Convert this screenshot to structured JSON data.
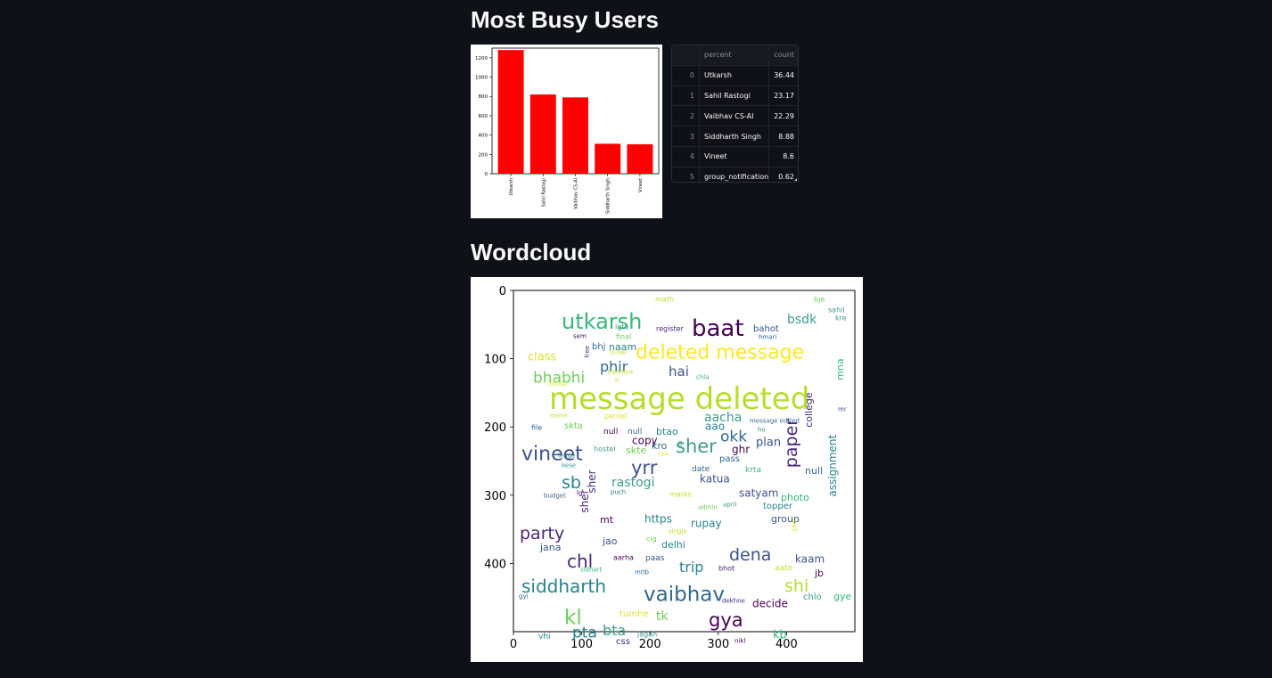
{
  "sections": {
    "busy_users_title": "Most Busy Users",
    "wordcloud_title": "Wordcloud"
  },
  "chart_data": [
    {
      "type": "bar",
      "categories": [
        "Utkarsh",
        "Sahil Rastogi",
        "Vaibhav CS-AI",
        "Siddharth Singh",
        "Vineet"
      ],
      "values": [
        1280,
        820,
        790,
        310,
        305
      ],
      "ylim": [
        0,
        1300
      ],
      "yticks": [
        0,
        200,
        400,
        600,
        800,
        1000,
        1200
      ],
      "bar_color": "#ff0000",
      "grid": false
    }
  ],
  "table": {
    "columns": [
      "",
      "percent",
      "count"
    ],
    "rows": [
      {
        "idx": "0",
        "name": "Utkarsh",
        "val": "36.44"
      },
      {
        "idx": "1",
        "name": "Sahil Rastogi",
        "val": "23.17"
      },
      {
        "idx": "2",
        "name": "Vaibhav CS-AI",
        "val": "22.29"
      },
      {
        "idx": "3",
        "name": "Siddharth Singh",
        "val": "8.88"
      },
      {
        "idx": "4",
        "name": "Vineet",
        "val": "8.6"
      },
      {
        "idx": "5",
        "name": "group_notification",
        "val": "0.62"
      }
    ]
  },
  "wordcloud": {
    "xticks": [
      "0",
      "100",
      "200",
      "300",
      "400"
    ],
    "yticks": [
      "0",
      "100",
      "200",
      "300",
      "400"
    ],
    "words": [
      {
        "t": "message deleted",
        "x": 38,
        "y": 106,
        "s": 34,
        "c": "#b5de2b"
      },
      {
        "t": "deleted message",
        "x": 135,
        "y": 59,
        "s": 22,
        "c": "#fde725"
      },
      {
        "t": "utkarsh",
        "x": 52,
        "y": 24,
        "s": 24,
        "c": "#35b779"
      },
      {
        "t": "baat",
        "x": 198,
        "y": 30,
        "s": 26,
        "c": "#440154"
      },
      {
        "t": "bsdk",
        "x": 305,
        "y": 26,
        "s": 14,
        "c": "#3e9a8c"
      },
      {
        "t": "math",
        "x": 157,
        "y": 6,
        "s": 8,
        "c": "#bddf26"
      },
      {
        "t": "bje",
        "x": 335,
        "y": 6,
        "s": 8,
        "c": "#6ece58"
      },
      {
        "t": "sahil",
        "x": 351,
        "y": 18,
        "s": 8,
        "c": "#3e9a8c"
      },
      {
        "t": "kre",
        "x": 359,
        "y": 27,
        "s": 8,
        "c": "#3e9a8c"
      },
      {
        "t": "bahot",
        "x": 267,
        "y": 38,
        "s": 10,
        "c": "#3b528b"
      },
      {
        "t": "hmari",
        "x": 273,
        "y": 49,
        "s": 7,
        "c": "#31688e"
      },
      {
        "t": "register",
        "x": 158,
        "y": 39,
        "s": 8,
        "c": "#482878"
      },
      {
        "t": "lgta",
        "x": 112,
        "y": 37,
        "s": 8,
        "c": "#3e9a8c"
      },
      {
        "t": "final",
        "x": 113,
        "y": 48,
        "s": 8,
        "c": "#6ece58"
      },
      {
        "t": "sem",
        "x": 65,
        "y": 48,
        "s": 7,
        "c": "#440154"
      },
      {
        "t": "bhj",
        "x": 86,
        "y": 58,
        "s": 10,
        "c": "#31688e"
      },
      {
        "t": "naam",
        "x": 105,
        "y": 58,
        "s": 11,
        "c": "#26828e"
      },
      {
        "t": "class",
        "x": 14,
        "y": 68,
        "s": 13,
        "c": "#dbe32d"
      },
      {
        "t": "ticket",
        "x": 106,
        "y": 66,
        "s": 7,
        "c": "#bddf26"
      },
      {
        "t": "free",
        "x": 83,
        "y": 70,
        "s": 7,
        "c": "#482878",
        "r": -90
      },
      {
        "t": "phir",
        "x": 95,
        "y": 78,
        "s": 16,
        "c": "#31688e"
      },
      {
        "t": "badhiya",
        "x": 104,
        "y": 88,
        "s": 7,
        "c": "#bddf26"
      },
      {
        "t": "hai",
        "x": 172,
        "y": 84,
        "s": 15,
        "c": "#3b528b"
      },
      {
        "t": "chla",
        "x": 203,
        "y": 94,
        "s": 7,
        "c": "#35b779"
      },
      {
        "t": "bhabhi",
        "x": 20,
        "y": 90,
        "s": 17,
        "c": "#6ece58"
      },
      {
        "t": "jayagi",
        "x": 37,
        "y": 101,
        "s": 7,
        "c": "#dbe32d"
      },
      {
        "t": "h",
        "x": 112,
        "y": 98,
        "s": 7,
        "c": "#dbe32d"
      },
      {
        "t": "mna",
        "x": 368,
        "y": 92,
        "s": 11,
        "c": "#35b779",
        "r": -90
      },
      {
        "t": "mr",
        "x": 362,
        "y": 130,
        "s": 7,
        "c": "#3b528b"
      },
      {
        "t": "aacha",
        "x": 212,
        "y": 136,
        "s": 14,
        "c": "#3e9a8c"
      },
      {
        "t": "aao",
        "x": 213,
        "y": 147,
        "s": 12,
        "c": "#26828e"
      },
      {
        "t": "mene",
        "x": 39,
        "y": 137,
        "s": 7,
        "c": "#bddf26"
      },
      {
        "t": "period",
        "x": 100,
        "y": 137,
        "s": 8,
        "c": "#dbe32d"
      },
      {
        "t": "skta",
        "x": 55,
        "y": 147,
        "s": 10,
        "c": "#6ece58"
      },
      {
        "t": "file",
        "x": 18,
        "y": 150,
        "s": 8,
        "c": "#31688e"
      },
      {
        "t": "message edited",
        "x": 263,
        "y": 143,
        "s": 7,
        "c": "#31688e"
      },
      {
        "t": "ho",
        "x": 272,
        "y": 153,
        "s": 7,
        "c": "#3e9a8c"
      },
      {
        "t": "okk",
        "x": 230,
        "y": 156,
        "s": 17,
        "c": "#31688e"
      },
      {
        "t": "college",
        "x": 333,
        "y": 145,
        "s": 11,
        "c": "#482878",
        "r": -90
      },
      {
        "t": "null",
        "x": 99,
        "y": 154,
        "s": 9,
        "c": "#440154"
      },
      {
        "t": "null",
        "x": 126,
        "y": 154,
        "s": 9,
        "c": "#31688e"
      },
      {
        "t": "btao",
        "x": 158,
        "y": 153,
        "s": 11,
        "c": "#26828e"
      },
      {
        "t": "sher",
        "x": 180,
        "y": 165,
        "s": 21,
        "c": "#3e9a8c"
      },
      {
        "t": "plan",
        "x": 270,
        "y": 164,
        "s": 13,
        "c": "#3b528b"
      },
      {
        "t": "copy",
        "x": 131,
        "y": 163,
        "s": 12,
        "c": "#440154"
      },
      {
        "t": "vineet",
        "x": 7,
        "y": 173,
        "s": 22,
        "c": "#3b528b"
      },
      {
        "t": "kro",
        "x": 153,
        "y": 169,
        "s": 11,
        "c": "#31688e"
      },
      {
        "t": "tb",
        "x": 187,
        "y": 170,
        "s": 7,
        "c": "#3e9a8c",
        "r": -90
      },
      {
        "t": "hostel",
        "x": 88,
        "y": 174,
        "s": 8,
        "c": "#3e9a8c"
      },
      {
        "t": "skte",
        "x": 124,
        "y": 174,
        "s": 11,
        "c": "#6ece58"
      },
      {
        "t": "ghr",
        "x": 243,
        "y": 173,
        "s": 12,
        "c": "#440154"
      },
      {
        "t": "lenge",
        "x": 48,
        "y": 182,
        "s": 7,
        "c": "#26828e"
      },
      {
        "t": "cee",
        "x": 160,
        "y": 180,
        "s": 7,
        "c": "#dbe32d"
      },
      {
        "t": "yrr",
        "x": 130,
        "y": 189,
        "s": 21,
        "c": "#3b528b"
      },
      {
        "t": "pass",
        "x": 229,
        "y": 184,
        "s": 10,
        "c": "#31688e"
      },
      {
        "t": "paper",
        "x": 316,
        "y": 184,
        "s": 19,
        "c": "#482878",
        "r": -90
      },
      {
        "t": "kese",
        "x": 52,
        "y": 193,
        "s": 7,
        "c": "#3e9a8c"
      },
      {
        "t": "null",
        "x": 325,
        "y": 197,
        "s": 11,
        "c": "#31688e"
      },
      {
        "t": "date",
        "x": 198,
        "y": 196,
        "s": 9,
        "c": "#31688e"
      },
      {
        "t": "krta",
        "x": 258,
        "y": 197,
        "s": 9,
        "c": "#35b779"
      },
      {
        "t": "katua",
        "x": 207,
        "y": 206,
        "s": 12,
        "c": "#3b528b"
      },
      {
        "t": "sb",
        "x": 52,
        "y": 207,
        "s": 19,
        "c": "#26828e"
      },
      {
        "t": "rastogi",
        "x": 108,
        "y": 209,
        "s": 14,
        "c": "#3e9a8c"
      },
      {
        "t": "sher",
        "x": 90,
        "y": 218,
        "s": 12,
        "c": "#482878",
        "r": -90
      },
      {
        "t": "lg",
        "x": 69,
        "y": 224,
        "s": 7,
        "c": "#440154"
      },
      {
        "t": "puch",
        "x": 107,
        "y": 223,
        "s": 7,
        "c": "#26828e"
      },
      {
        "t": "budget",
        "x": 32,
        "y": 227,
        "s": 7,
        "c": "#31688e"
      },
      {
        "t": "satyam",
        "x": 251,
        "y": 222,
        "s": 12,
        "c": "#3b528b"
      },
      {
        "t": "marks",
        "x": 173,
        "y": 225,
        "s": 8,
        "c": "#bddf26"
      },
      {
        "t": "photo",
        "x": 298,
        "y": 227,
        "s": 11,
        "c": "#35b779"
      },
      {
        "t": "assignment",
        "x": 360,
        "y": 222,
        "s": 12,
        "c": "#26828e",
        "r": -90
      },
      {
        "t": "admin",
        "x": 205,
        "y": 240,
        "s": 7,
        "c": "#6ece58"
      },
      {
        "t": "april",
        "x": 233,
        "y": 237,
        "s": 7,
        "c": "#3e9a8c"
      },
      {
        "t": "topper",
        "x": 278,
        "y": 237,
        "s": 10,
        "c": "#26828e"
      },
      {
        "t": "sher",
        "x": 82,
        "y": 240,
        "s": 12,
        "c": "#482878",
        "r": -90
      },
      {
        "t": "mt",
        "x": 95,
        "y": 252,
        "s": 11,
        "c": "#440154"
      },
      {
        "t": "https",
        "x": 145,
        "y": 251,
        "s": 12,
        "c": "#26828e"
      },
      {
        "t": "group",
        "x": 287,
        "y": 251,
        "s": 11,
        "c": "#3b528b"
      },
      {
        "t": "rupay",
        "x": 197,
        "y": 256,
        "s": 12,
        "c": "#26828e"
      },
      {
        "t": "party",
        "x": 5,
        "y": 264,
        "s": 19,
        "c": "#482878"
      },
      {
        "t": "single",
        "x": 172,
        "y": 267,
        "s": 7,
        "c": "#bddf26"
      },
      {
        "t": "yaar",
        "x": 315,
        "y": 265,
        "s": 7,
        "c": "#dbe32d",
        "r": -90
      },
      {
        "t": "clg",
        "x": 147,
        "y": 275,
        "s": 8,
        "c": "#6ece58"
      },
      {
        "t": "jao",
        "x": 98,
        "y": 276,
        "s": 11,
        "c": "#3b528b"
      },
      {
        "t": "delhi",
        "x": 164,
        "y": 280,
        "s": 11,
        "c": "#26828e"
      },
      {
        "t": "jana",
        "x": 28,
        "y": 283,
        "s": 11,
        "c": "#3b528b"
      },
      {
        "t": "dena",
        "x": 240,
        "y": 288,
        "s": 19,
        "c": "#3b528b"
      },
      {
        "t": "chl",
        "x": 58,
        "y": 295,
        "s": 20,
        "c": "#482878"
      },
      {
        "t": "aarha",
        "x": 110,
        "y": 296,
        "s": 8,
        "c": "#440154"
      },
      {
        "t": "paas",
        "x": 146,
        "y": 296,
        "s": 9,
        "c": "#3b528b"
      },
      {
        "t": "kaam",
        "x": 314,
        "y": 296,
        "s": 12,
        "c": "#3b528b"
      },
      {
        "t": "trip",
        "x": 184,
        "y": 303,
        "s": 16,
        "c": "#26828e"
      },
      {
        "t": "sidhart",
        "x": 73,
        "y": 310,
        "s": 7,
        "c": "#35b779"
      },
      {
        "t": "mtlb",
        "x": 134,
        "y": 313,
        "s": 7,
        "c": "#31688e"
      },
      {
        "t": "bhot",
        "x": 228,
        "y": 308,
        "s": 8,
        "c": "#482878"
      },
      {
        "t": "aate",
        "x": 291,
        "y": 307,
        "s": 9,
        "c": "#bddf26"
      },
      {
        "t": "jb",
        "x": 336,
        "y": 312,
        "s": 11,
        "c": "#440154"
      },
      {
        "t": "siddharth",
        "x": 7,
        "y": 323,
        "s": 20,
        "c": "#26828e"
      },
      {
        "t": "vaibhav",
        "x": 144,
        "y": 330,
        "s": 23,
        "c": "#31688e"
      },
      {
        "t": "shi",
        "x": 302,
        "y": 323,
        "s": 19,
        "c": "#b5de2b"
      },
      {
        "t": "gyi",
        "x": 4,
        "y": 340,
        "s": 7,
        "c": "#31688e"
      },
      {
        "t": "chlo",
        "x": 323,
        "y": 339,
        "s": 10,
        "c": "#3e9a8c"
      },
      {
        "t": "gye",
        "x": 357,
        "y": 338,
        "s": 11,
        "c": "#35b779"
      },
      {
        "t": "dekhne",
        "x": 232,
        "y": 345,
        "s": 7,
        "c": "#482878"
      },
      {
        "t": "decide",
        "x": 266,
        "y": 346,
        "s": 12,
        "c": "#440154"
      },
      {
        "t": "kl",
        "x": 55,
        "y": 356,
        "s": 23,
        "c": "#6ece58"
      },
      {
        "t": "tumhe",
        "x": 117,
        "y": 358,
        "s": 10,
        "c": "#dbe32d"
      },
      {
        "t": "tk",
        "x": 158,
        "y": 359,
        "s": 14,
        "c": "#6ece58"
      },
      {
        "t": "gya",
        "x": 217,
        "y": 360,
        "s": 21,
        "c": "#440154"
      },
      {
        "t": "pta",
        "x": 64,
        "y": 376,
        "s": 17,
        "c": "#26828e"
      },
      {
        "t": "bta",
        "x": 98,
        "y": 374,
        "s": 16,
        "c": "#3e9a8c"
      },
      {
        "t": "kb",
        "x": 289,
        "y": 380,
        "s": 13,
        "c": "#35b779"
      },
      {
        "t": "vhi",
        "x": 26,
        "y": 384,
        "s": 9,
        "c": "#26828e"
      },
      {
        "t": "jagah",
        "x": 137,
        "y": 382,
        "s": 8,
        "c": "#3e9a8c"
      },
      {
        "t": "css",
        "x": 113,
        "y": 389,
        "s": 10,
        "c": "#482878"
      },
      {
        "t": "nikl",
        "x": 246,
        "y": 390,
        "s": 7,
        "c": "#440154"
      }
    ]
  }
}
